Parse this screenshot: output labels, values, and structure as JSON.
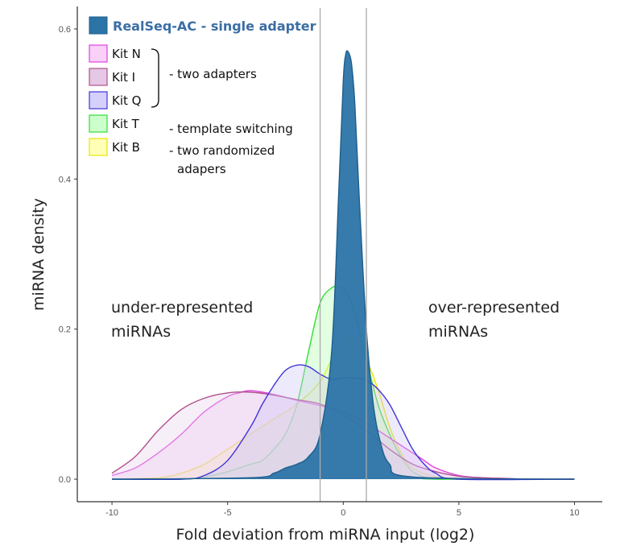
{
  "chart_data": {
    "type": "area",
    "title": "",
    "xlabel": "Fold deviation from miRNA input (log2)",
    "ylabel": "miRNA density",
    "xlim": [
      -11.5,
      11.2
    ],
    "ylim": [
      -0.03,
      0.63
    ],
    "xticks": [
      "-10",
      "-5",
      "0",
      "5",
      "10"
    ],
    "xtick_values": [
      -10,
      -5,
      0,
      5,
      10
    ],
    "yticks": [
      "0.0",
      "0.2",
      "0.4",
      "0.6"
    ],
    "ytick_values": [
      0.0,
      0.2,
      0.4,
      0.6
    ],
    "vlines": [
      -1,
      1
    ],
    "grid": false,
    "legend_position": "top-left",
    "series": [
      {
        "name": "Kit B",
        "fill": "#ffff99",
        "stroke": "#e6e600",
        "x": [
          -10,
          -8,
          -7,
          -6,
          -5,
          -4,
          -3,
          -2,
          -1,
          -0.5,
          0,
          0.3,
          0.6,
          1,
          1.5,
          2,
          2.5,
          3,
          4,
          5,
          6,
          10
        ],
        "y": [
          0.0,
          0.002,
          0.008,
          0.02,
          0.04,
          0.06,
          0.08,
          0.1,
          0.13,
          0.16,
          0.18,
          0.188,
          0.185,
          0.16,
          0.12,
          0.07,
          0.035,
          0.015,
          0.003,
          0.001,
          0.0,
          0.0
        ]
      },
      {
        "name": "Kit T",
        "fill": "#b3ffb3",
        "stroke": "#33dd33",
        "x": [
          -10,
          -7,
          -6,
          -5,
          -4,
          -3.5,
          -3,
          -2.5,
          -2,
          -1.5,
          -1,
          -0.5,
          -0.2,
          0,
          0.3,
          0.6,
          1,
          1.5,
          2,
          2.5,
          3,
          3.5,
          4,
          10
        ],
        "y": [
          0.0,
          0.0,
          0.003,
          0.01,
          0.02,
          0.025,
          0.04,
          0.06,
          0.1,
          0.17,
          0.235,
          0.255,
          0.256,
          0.254,
          0.24,
          0.21,
          0.16,
          0.1,
          0.06,
          0.03,
          0.01,
          0.003,
          0.0,
          0.0
        ]
      },
      {
        "name": "Kit N",
        "fill": "#f5c6f5",
        "stroke": "#e040e0",
        "x": [
          -10,
          -9,
          -8,
          -7,
          -6,
          -5,
          -4.5,
          -4,
          -3,
          -2,
          -1,
          0,
          1,
          2,
          3,
          3.5,
          4,
          5,
          6,
          7,
          8,
          10
        ],
        "y": [
          0.005,
          0.015,
          0.035,
          0.06,
          0.09,
          0.11,
          0.115,
          0.118,
          0.113,
          0.105,
          0.098,
          0.09,
          0.075,
          0.055,
          0.035,
          0.025,
          0.015,
          0.005,
          0.002,
          0.001,
          0.0,
          0.0
        ]
      },
      {
        "name": "Kit I",
        "fill": "#e8d4ec",
        "stroke": "#b0508c",
        "x": [
          -10,
          -9,
          -8,
          -7,
          -6,
          -5,
          -4,
          -3,
          -2,
          -1,
          0,
          1,
          2,
          3,
          4,
          5,
          6,
          7,
          8,
          10
        ],
        "y": [
          0.008,
          0.03,
          0.065,
          0.093,
          0.108,
          0.115,
          0.116,
          0.112,
          0.106,
          0.1,
          0.085,
          0.065,
          0.04,
          0.02,
          0.01,
          0.004,
          0.002,
          0.001,
          0.0,
          0.0
        ]
      },
      {
        "name": "Kit Q",
        "fill": "#cfc8f5",
        "stroke": "#4035d8",
        "x": [
          -10,
          -7,
          -6,
          -5,
          -4,
          -3.5,
          -3,
          -2.5,
          -2,
          -1.5,
          -1,
          -0.5,
          0,
          0.5,
          1,
          1.5,
          2,
          2.5,
          3,
          3.5,
          4,
          5,
          10
        ],
        "y": [
          0.0,
          0.0,
          0.005,
          0.025,
          0.07,
          0.1,
          0.125,
          0.145,
          0.152,
          0.15,
          0.14,
          0.133,
          0.135,
          0.135,
          0.132,
          0.12,
          0.1,
          0.07,
          0.04,
          0.02,
          0.008,
          0.0,
          0.0
        ]
      },
      {
        "name": "RealSeq-AC - single adapter",
        "fill": "#2c74a8",
        "stroke": "#1d5e8e",
        "x": [
          -10,
          -4,
          -3,
          -2.5,
          -2,
          -1.5,
          -1,
          -0.5,
          -0.2,
          0,
          0.1,
          0.2,
          0.35,
          0.5,
          0.7,
          1,
          1.3,
          1.6,
          2,
          3,
          10
        ],
        "y": [
          0.0,
          0.002,
          0.008,
          0.015,
          0.02,
          0.03,
          0.06,
          0.17,
          0.38,
          0.53,
          0.565,
          0.57,
          0.555,
          0.5,
          0.37,
          0.2,
          0.1,
          0.05,
          0.02,
          0.003,
          0.0
        ]
      }
    ]
  },
  "legend": {
    "title": "RealSeq-AC - single adapter",
    "items": [
      {
        "label": "Kit N",
        "fill": "#f8d0f8",
        "stroke": "#e040e0"
      },
      {
        "label": "Kit I",
        "fill": "#e4c8e6",
        "stroke": "#b0508c"
      },
      {
        "label": "Kit Q",
        "fill": "#d4d0fb",
        "stroke": "#4035d8"
      },
      {
        "label": "Kit T",
        "fill": "#ccffcc",
        "stroke": "#33dd33"
      },
      {
        "label": "Kit B",
        "fill": "#ffffb8",
        "stroke": "#e6e600"
      }
    ],
    "group_two_adapters": "- two adapters",
    "group_template_switching": "- template switching",
    "group_randomized_1": "- two randomized",
    "group_randomized_2": "adapers"
  },
  "annotations": {
    "under_1": "under-represented",
    "under_2": "miRNAs",
    "over_1": "over-represented",
    "over_2": "miRNAs"
  }
}
